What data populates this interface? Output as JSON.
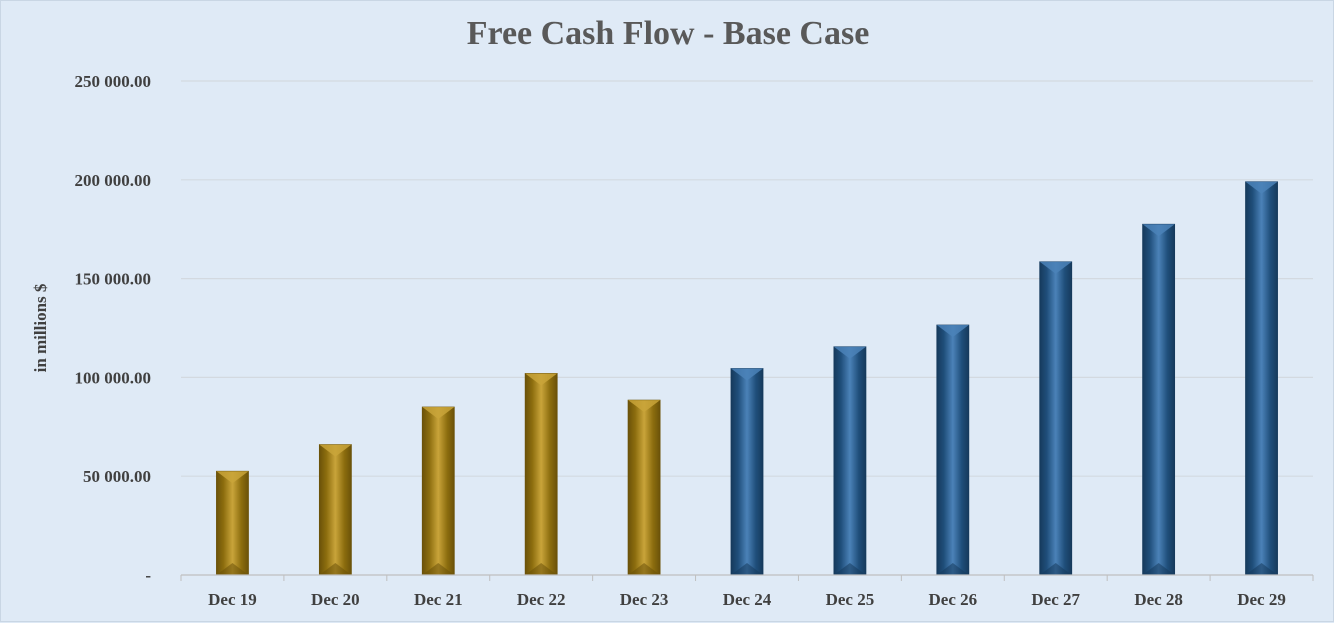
{
  "chart_data": {
    "type": "bar",
    "title": "Free Cash Flow - Base Case",
    "xlabel": "",
    "ylabel": "in millions $",
    "categories": [
      "Dec 19",
      "Dec 20",
      "Dec 21",
      "Dec 22",
      "Dec 23",
      "Dec 24",
      "Dec 25",
      "Dec 26",
      "Dec 27",
      "Dec 28",
      "Dec 29"
    ],
    "values": [
      52500,
      66000,
      85000,
      102000,
      88500,
      104500,
      115500,
      126500,
      158500,
      177500,
      199000
    ],
    "bar_kind": [
      "historical",
      "historical",
      "historical",
      "historical",
      "historical",
      "projected",
      "projected",
      "projected",
      "projected",
      "projected",
      "projected"
    ],
    "ylim": [
      0,
      250000
    ],
    "yticks": [
      0,
      50000,
      100000,
      150000,
      200000,
      250000
    ],
    "ytick_labels": [
      "-",
      "50 000.00",
      "100 000.00",
      "150 000.00",
      "200 000.00",
      "250 000.00"
    ],
    "grid": true,
    "legend": "none",
    "colors": {
      "historical": "#8c6d0e",
      "historical_light": "#c9a43a",
      "historical_dark": "#6b5209",
      "projected": "#1f4e7a",
      "projected_light": "#4b82b8",
      "projected_dark": "#163a5c",
      "gridline": "#d3d9e0",
      "axis": "#bfbfbf"
    }
  }
}
